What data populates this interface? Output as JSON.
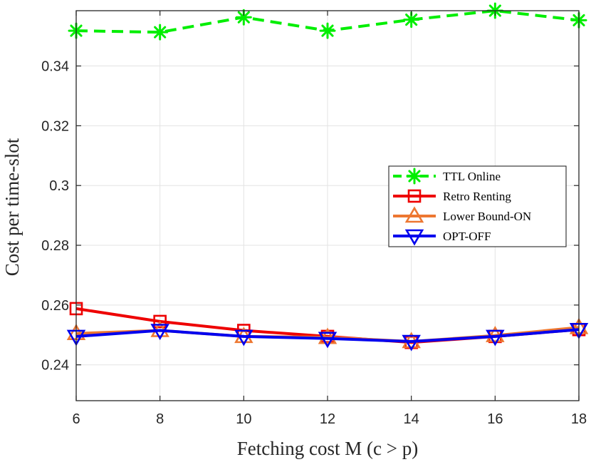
{
  "chart_data": {
    "type": "line",
    "title": "",
    "xlabel": "Fetching cost M (c > p)",
    "ylabel": "Cost per time-slot",
    "xlim": [
      6,
      18
    ],
    "ylim": [
      0.228,
      0.3585
    ],
    "x": [
      6,
      8,
      10,
      12,
      14,
      16,
      18
    ],
    "xticks": [
      "6",
      "8",
      "10",
      "12",
      "14",
      "16",
      "18"
    ],
    "yticks": [
      "0.24",
      "0.26",
      "0.28",
      "0.3",
      "0.32",
      "0.34"
    ],
    "grid": true,
    "legend_position": "right",
    "series": [
      {
        "name": "TTL Online",
        "color": "#00ee00",
        "line": "dashed",
        "marker": "asterisk",
        "values": [
          0.3518,
          0.3513,
          0.3563,
          0.3518,
          0.3555,
          0.3585,
          0.3553
        ]
      },
      {
        "name": "Retro Renting",
        "color": "#ee0000",
        "line": "solid",
        "marker": "square",
        "values": [
          0.2588,
          0.2545,
          0.2515,
          0.2495,
          0.2475,
          0.2495,
          0.2518
        ]
      },
      {
        "name": "Lower Bound-ON",
        "color": "#ed7731",
        "line": "solid",
        "marker": "triangle-up",
        "values": [
          0.2505,
          0.2515,
          0.2495,
          0.2492,
          0.2478,
          0.2498,
          0.2525
        ]
      },
      {
        "name": "OPT-OFF",
        "color": "#0000ee",
        "line": "solid",
        "marker": "triangle-down",
        "values": [
          0.2495,
          0.2515,
          0.2495,
          0.2488,
          0.2478,
          0.2495,
          0.2518
        ]
      }
    ]
  }
}
